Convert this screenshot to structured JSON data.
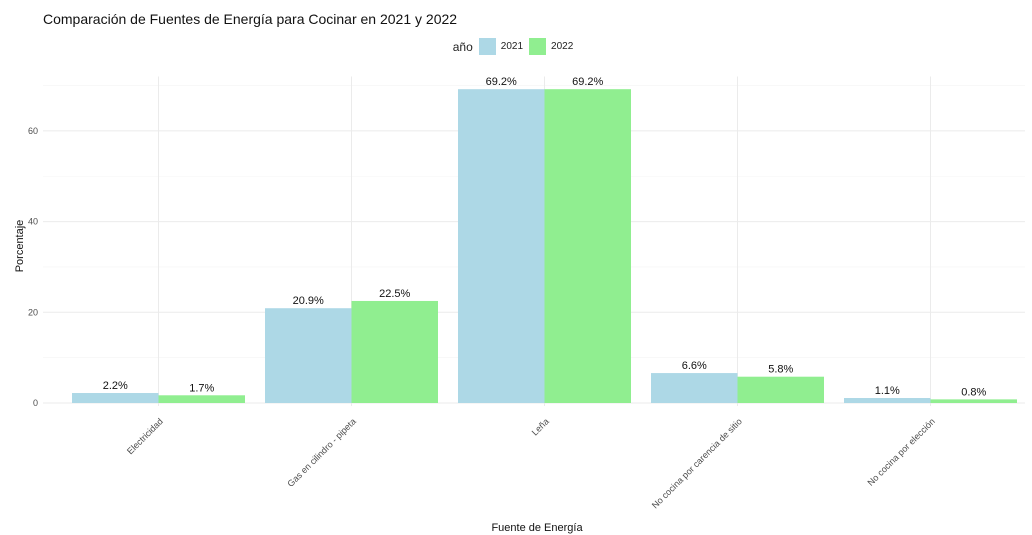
{
  "chart_data": {
    "type": "bar",
    "title": "Comparación de Fuentes de Energía para Cocinar en 2021 y 2022",
    "xlabel": "Fuente de Energía",
    "ylabel": "Porcentaje",
    "categories": [
      "Electricidad",
      "Gas en cilindro - pipeta",
      "Leña",
      "No cocina por carencia de sitio",
      "No cocina por elección"
    ],
    "legend_title": "año",
    "legend_position": "top",
    "series": [
      {
        "name": "2021",
        "color": "#add8e6",
        "values": [
          2.2,
          20.9,
          69.2,
          6.6,
          1.1
        ],
        "labels": [
          "2.2%",
          "20.9%",
          "69.2%",
          "6.6%",
          "1.1%"
        ]
      },
      {
        "name": "2022",
        "color": "#90ee90",
        "values": [
          1.7,
          22.5,
          69.2,
          5.8,
          0.8
        ],
        "labels": [
          "1.7%",
          "22.5%",
          "69.2%",
          "5.8%",
          "0.8%"
        ]
      }
    ],
    "yticks": [
      0,
      20,
      40,
      60
    ],
    "ylim": [
      0,
      72
    ],
    "grid": true
  }
}
